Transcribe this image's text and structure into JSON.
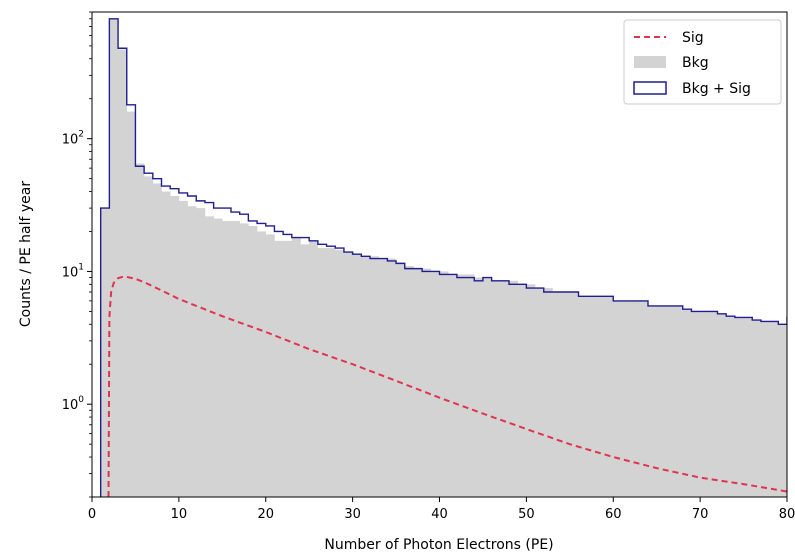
{
  "chart_data": {
    "type": "histogram",
    "title": "",
    "xlabel": "Number of Photon Electrons (PE)",
    "ylabel": "Counts / PE half year",
    "xlim": [
      0,
      80
    ],
    "ylim": [
      0.2,
      900
    ],
    "yscale": "log",
    "grid": false,
    "legend_position": "top-right",
    "x_ticks": [
      0,
      10,
      20,
      30,
      40,
      50,
      60,
      70,
      80
    ],
    "y_ticks": [
      {
        "value": 1,
        "base": "10",
        "exp": "0"
      },
      {
        "value": 10,
        "base": "10",
        "exp": "1"
      },
      {
        "value": 100,
        "base": "10",
        "exp": "2"
      }
    ],
    "bin_width": 1,
    "bin_edges_start": 1,
    "legend": [
      {
        "label": "Sig",
        "style": "dashed-line",
        "color": "#e0344e"
      },
      {
        "label": "Bkg",
        "style": "filled",
        "color": "#d3d3d3"
      },
      {
        "label": "Bkg + Sig",
        "style": "step-outline",
        "color": "#1f1f8f"
      }
    ],
    "series": [
      {
        "name": "Bkg",
        "kind": "filled-step",
        "color": "#d3d3d3",
        "values": [
          30,
          800,
          470,
          160,
          65,
          52,
          46,
          40,
          37,
          34,
          31,
          30,
          26,
          25,
          24,
          24,
          23,
          22,
          20,
          19,
          17,
          17,
          18,
          16,
          17,
          15,
          15,
          14.5,
          14,
          13.5,
          13,
          13,
          12.5,
          12.5,
          11.5,
          11,
          10.5,
          10.5,
          10,
          10,
          9.5,
          9.5,
          9.5,
          9,
          9,
          8.5,
          8.5,
          8.5,
          8,
          8,
          7.5,
          7.5,
          7,
          7,
          7,
          6.5,
          6.5,
          6.5,
          6.5,
          6,
          6,
          6,
          6,
          5.5,
          5.5,
          5.5,
          5.5,
          5.2,
          5,
          5,
          5,
          4.8,
          4.6,
          4.5,
          4.5,
          4.3,
          4.2,
          4.2,
          4,
          4
        ]
      },
      {
        "name": "Bkg + Sig",
        "kind": "step-outline",
        "color": "#1f1f8f",
        "values": [
          30,
          800,
          480,
          180,
          62,
          55,
          50,
          44,
          42,
          39,
          37,
          34,
          33,
          30,
          30,
          28,
          27,
          24,
          23,
          22,
          20,
          19,
          18,
          18,
          17,
          16,
          15.5,
          15,
          14,
          13.5,
          13,
          12.5,
          12.5,
          12,
          11.5,
          10.5,
          10.5,
          10,
          10,
          9.5,
          9.5,
          9,
          9,
          8.5,
          9,
          8.5,
          8.5,
          8,
          8,
          7.5,
          7.5,
          7,
          7,
          7,
          7,
          6.5,
          6.5,
          6.5,
          6.5,
          6,
          6,
          6,
          6,
          5.5,
          5.5,
          5.5,
          5.5,
          5.2,
          5,
          5,
          5,
          4.8,
          4.6,
          4.5,
          4.5,
          4.3,
          4.2,
          4.2,
          4,
          4.5
        ]
      },
      {
        "name": "Sig",
        "kind": "dashed-curve",
        "color": "#e0344e",
        "x": [
          1.9,
          2.0,
          2.2,
          2.5,
          3.0,
          3.5,
          4.0,
          5,
          6,
          8,
          10,
          15,
          20,
          25,
          30,
          35,
          40,
          45,
          50,
          55,
          60,
          65,
          70,
          75,
          80
        ],
        "values": [
          0.2,
          4.5,
          7.0,
          8.2,
          8.9,
          9.1,
          9.1,
          8.8,
          8.3,
          7.2,
          6.2,
          4.6,
          3.5,
          2.6,
          2.0,
          1.5,
          1.12,
          0.85,
          0.65,
          0.5,
          0.4,
          0.33,
          0.28,
          0.25,
          0.22
        ]
      }
    ]
  }
}
